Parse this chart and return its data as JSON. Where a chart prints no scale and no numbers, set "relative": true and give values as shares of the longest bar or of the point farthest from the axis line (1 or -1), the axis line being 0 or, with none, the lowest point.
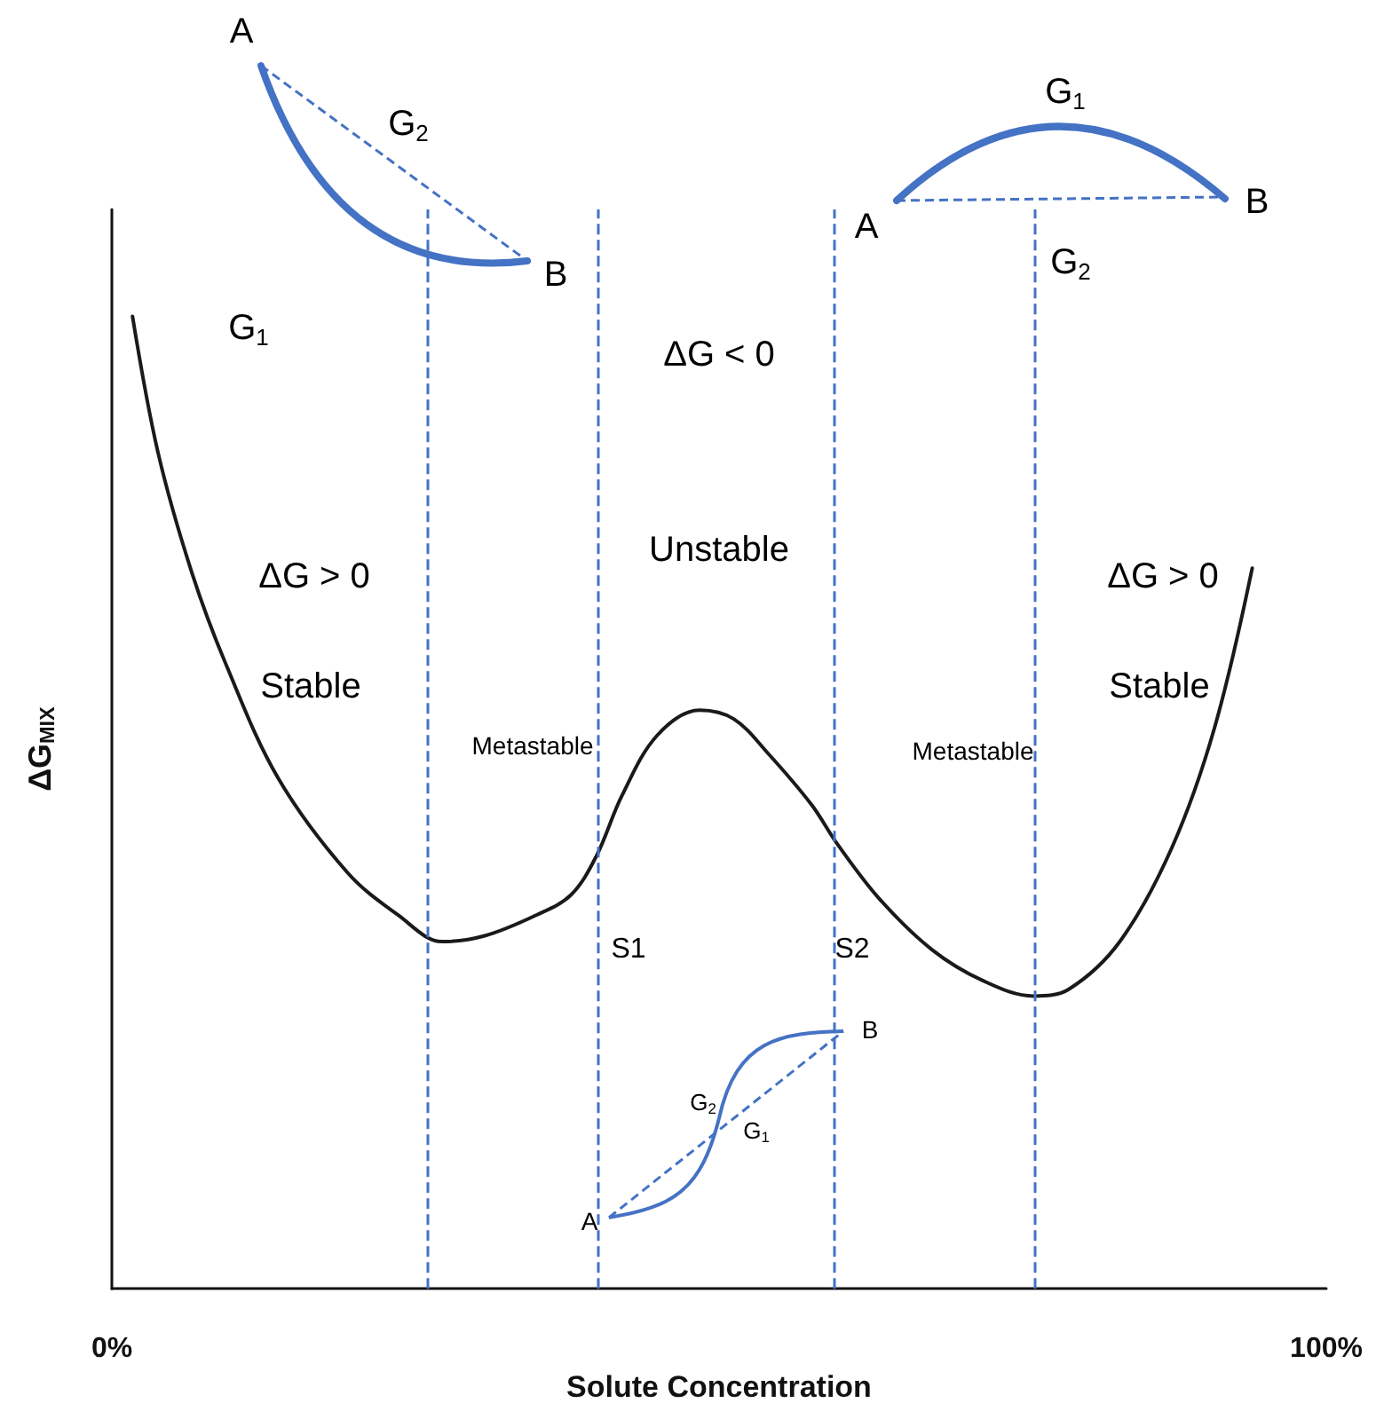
{
  "chart_data": {
    "type": "line",
    "relative": true,
    "xlabel": "Solute Concentration",
    "ylabel": "ΔG$_{MIX}$",
    "xlim": [
      0,
      100
    ],
    "xticks": [
      {
        "value": 0,
        "label": "0%"
      },
      {
        "value": 100,
        "label": "100%"
      }
    ],
    "tick_labels": "x",
    "marker": "none",
    "line_style": "solid",
    "series": [
      {
        "color": "#1a1a1a",
        "x": [
          1.7,
          3.8,
          6.6,
          9.5,
          13.7,
          19.4,
          23.6,
          27.2,
          30.7,
          34.9,
          37.8,
          39.9,
          42,
          44.9,
          48.4,
          51.2,
          54,
          57.6,
          59.7,
          63.2,
          67.5,
          71.7,
          75.9,
          78.8,
          83,
          87.3,
          90.8,
          93.9
        ],
        "values": [
          1,
          0.86,
          0.736,
          0.639,
          0.525,
          0.428,
          0.384,
          0.357,
          0.363,
          0.384,
          0.405,
          0.445,
          0.507,
          0.569,
          0.595,
          0.586,
          0.551,
          0.498,
          0.458,
          0.401,
          0.349,
          0.317,
          0.301,
          0.308,
          0.357,
          0.454,
          0.577,
          0.741
        ]
      }
    ],
    "ref_lines": [
      {
        "axis": "x",
        "value": 26,
        "color": "#4472c4",
        "line_style": "dashed"
      },
      {
        "axis": "x",
        "value": 40,
        "color": "#4472c4",
        "line_style": "dashed"
      },
      {
        "axis": "x",
        "value": 59.5,
        "color": "#4472c4",
        "line_style": "dashed"
      },
      {
        "axis": "x",
        "value": 76,
        "color": "#4472c4",
        "line_style": "dashed"
      }
    ],
    "annotations": [
      "ΔG < 0",
      "ΔG > 0",
      "Stable",
      "Unstable",
      "Metastable",
      "Metastable",
      "ΔG > 0",
      "Stable",
      "S1",
      "S2",
      "G$_{1}$",
      "A",
      "G$_{2}$",
      "B",
      "G$_{1}$",
      "A",
      "B",
      "G$_{2}$",
      "B",
      "G$_{2}$",
      "G$_{1}$",
      "A"
    ]
  }
}
